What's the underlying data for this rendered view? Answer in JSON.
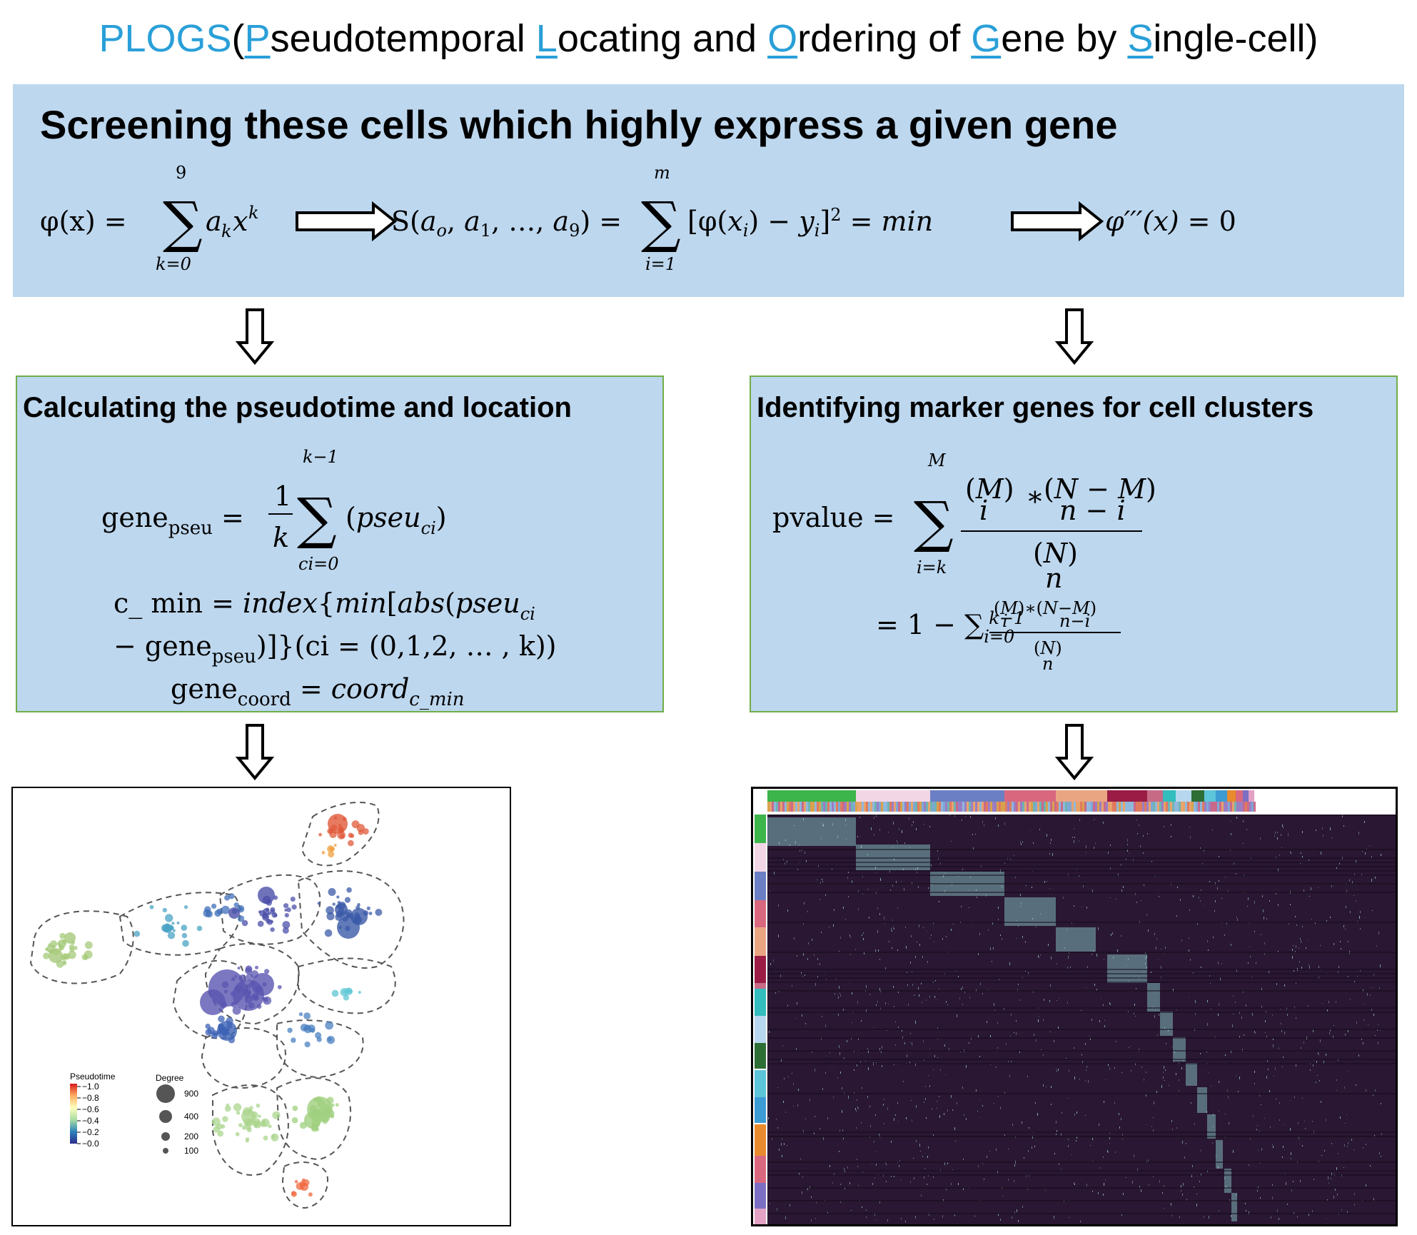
{
  "title": {
    "acronym": "PLOGS",
    "open_paren": "(",
    "close_paren": ")",
    "words": [
      {
        "initial": "P",
        "rest": "seudotemporal "
      },
      {
        "initial": "L",
        "rest": "ocating and "
      },
      {
        "initial": "O",
        "rest": "rdering of "
      },
      {
        "initial": "G",
        "rest": "ene by "
      },
      {
        "initial": "S",
        "rest": "ingle-cell"
      }
    ]
  },
  "top_panel": {
    "heading": "Screening these cells which highly express a given gene"
  },
  "left_panel": {
    "heading": "Calculating the pseudotime and location"
  },
  "right_panel": {
    "heading": "Identifying marker genes for cell clusters"
  },
  "graph_legend": {
    "pseudotime_title": "Pseudotime",
    "pseudotime_ticks": [
      "1.0",
      "0.8",
      "0.6",
      "0.4",
      "0.2",
      "0.0"
    ],
    "degree_title": "Degree",
    "degree_values": [
      "900",
      "400",
      "200",
      "100"
    ]
  },
  "colors": {
    "accent_blue": "#2a9fd8",
    "panel_fill": "#bdd7ee",
    "panel_border": "#70ad47",
    "heatmap_background": "#2a1733"
  }
}
